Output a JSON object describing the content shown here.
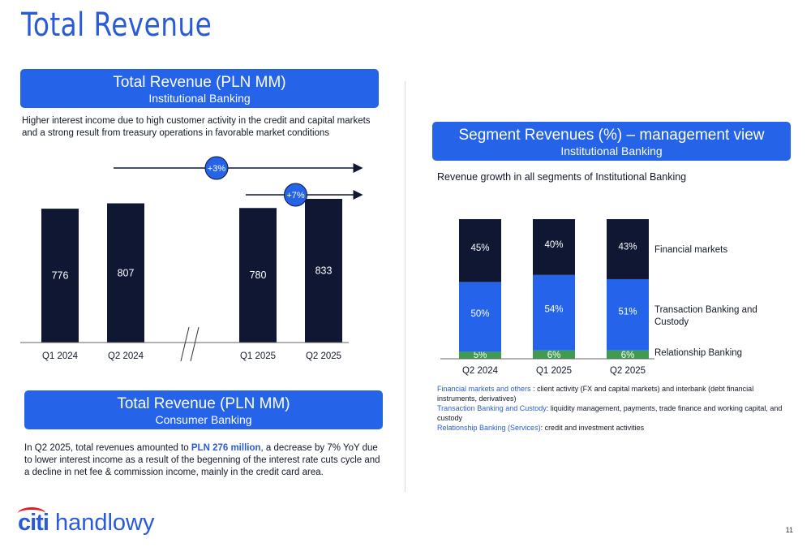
{
  "page": {
    "title": "Total Revenue",
    "page_number": "11",
    "logo_text": {
      "citi": "citi",
      "brand": "handlowy"
    }
  },
  "institutional": {
    "header_title": "Total Revenue (PLN MM)",
    "header_subtitle": "Institutional Banking",
    "description": "Higher interest income due to high customer activity in the credit and capital markets and a strong result from treasury operations in favorable market conditions",
    "growth_labels": [
      "+3%",
      "+7%"
    ]
  },
  "consumer": {
    "header_title": "Total Revenue (PLN MM)",
    "header_subtitle": "Consumer Banking",
    "text_before": "In Q2 2025, total revenues amounted to ",
    "text_highlight": "PLN 276 million",
    "text_after": ", a decrease by 7% YoY due to lower interest income as a result of the begenning of the interest rate cuts cycle and a decline in net fee & commission income, mainly in the credit card area."
  },
  "segments": {
    "header_title": "Segment Revenues (%) – management view",
    "header_subtitle": "Institutional Banking",
    "description": "Revenue growth in all segments of Institutional Banking",
    "legend": [
      "Financial markets",
      "Transaction Banking and Custody",
      "Relationship Banking"
    ],
    "notes": [
      {
        "key": "Financial markets and others",
        "text": " : client activity (FX and capital markets) and interbank (debt financial instruments, derivatives)"
      },
      {
        "key": "Transaction Banking and Custody",
        "text": ": liquidity management, payments, trade finance and working capital, and custody"
      },
      {
        "key": "Relationship Banking (Services)",
        "text": ": credit and investment activities"
      }
    ]
  },
  "colors": {
    "accent": "#2563e8",
    "bar_dark": "#0f1733",
    "transaction_blue": "#2563eb",
    "relationship_green": "#3e9b4f"
  },
  "chart_data": [
    {
      "type": "bar",
      "categories": [
        "Q1 2024",
        "Q2 2024",
        "Q1 2025",
        "Q2 2025"
      ],
      "values": [
        776,
        807,
        780,
        833
      ],
      "axis_break": "between Q2 2024 and Q1 2025",
      "annotations": [
        {
          "label": "+3%",
          "from": "Q2 2024",
          "to": "Q2 2025"
        },
        {
          "label": "+7%",
          "from": "Q1 2025",
          "to": "Q2 2025"
        }
      ],
      "grid": false
    },
    {
      "type": "bar",
      "stacked": true,
      "percent": true,
      "categories": [
        "Q2 2024",
        "Q1 2025",
        "Q2 2025"
      ],
      "series": [
        {
          "name": "Relationship Banking",
          "values": [
            5,
            6,
            6
          ]
        },
        {
          "name": "Transaction Banking and Custody",
          "values": [
            50,
            54,
            51
          ]
        },
        {
          "name": "Financial markets",
          "values": [
            45,
            40,
            43
          ]
        }
      ],
      "legend_position": "right",
      "grid": false
    }
  ]
}
